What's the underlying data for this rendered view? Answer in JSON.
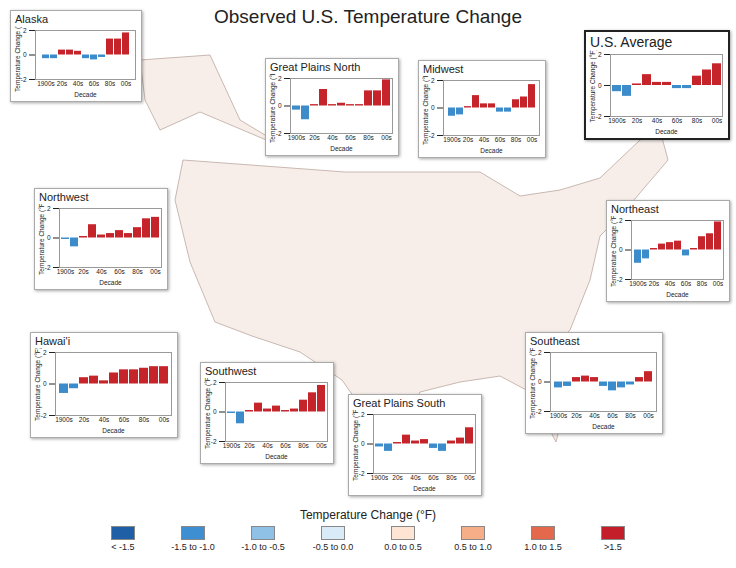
{
  "title": "Observed U.S. Temperature Change",
  "chart_data": [
    {
      "type": "bar",
      "title": "Alaska",
      "categories": [
        "1900s",
        null,
        "20s",
        null,
        "40s",
        null,
        "60s",
        null,
        "80s",
        null,
        "00s"
      ],
      "values": [
        -0.3,
        -0.3,
        0.4,
        0.4,
        0.3,
        -0.3,
        -0.4,
        -0.2,
        1.3,
        1.3,
        1.8
      ],
      "colors": [
        "#3c8ccb",
        "#3c8ccb",
        "#c5242b",
        "#c5242b",
        "#c5242b",
        "#3c8ccb",
        "#3c8ccb",
        "#3c8ccb",
        "#c5242b",
        "#c5242b",
        "#c5242b"
      ],
      "xlabel": "Decade",
      "ylabel": "Temperature Change (°F)",
      "ylim": [
        -2,
        2
      ],
      "yticks": [
        -2,
        0,
        2
      ]
    },
    {
      "type": "bar",
      "title": "Great Plains North",
      "categories": [
        "1900s",
        null,
        "20s",
        null,
        "40s",
        null,
        "60s",
        null,
        "80s",
        null,
        "00s"
      ],
      "values": [
        -0.3,
        -1.0,
        0.1,
        1.2,
        0.1,
        0.2,
        0.1,
        0.1,
        1.1,
        1.1,
        1.9
      ],
      "colors": [
        "#3c8ccb",
        "#3c8ccb",
        "#c5242b",
        "#c5242b",
        "#c5242b",
        "#c5242b",
        "#c5242b",
        "#c5242b",
        "#c5242b",
        "#c5242b",
        "#c5242b"
      ],
      "xlabel": "Decade",
      "ylabel": "Temperature Change (°F)",
      "ylim": [
        -2,
        2
      ],
      "yticks": [
        -2,
        0,
        2
      ]
    },
    {
      "type": "bar",
      "title": "Midwest",
      "categories": [
        "1900s",
        null,
        "20s",
        null,
        "40s",
        null,
        "60s",
        null,
        "80s",
        null,
        "00s"
      ],
      "values": [
        -0.6,
        -0.5,
        0.1,
        0.9,
        0.3,
        0.3,
        -0.3,
        -0.3,
        0.6,
        0.8,
        1.7
      ],
      "colors": [
        "#3c8ccb",
        "#3c8ccb",
        "#c5242b",
        "#c5242b",
        "#c5242b",
        "#c5242b",
        "#3c8ccb",
        "#3c8ccb",
        "#c5242b",
        "#c5242b",
        "#c5242b"
      ],
      "xlabel": "Decade",
      "ylabel": "Temperature Change (°F)",
      "ylim": [
        -2,
        2
      ],
      "yticks": [
        -2,
        0,
        2
      ]
    },
    {
      "type": "bar",
      "title": "U.S. Average",
      "categories": [
        "1900s",
        null,
        "20s",
        null,
        "40s",
        null,
        "60s",
        null,
        "80s",
        null,
        "00s"
      ],
      "values": [
        -0.4,
        -0.7,
        0.1,
        0.7,
        0.2,
        0.2,
        -0.2,
        -0.2,
        0.6,
        1.0,
        1.4
      ],
      "colors": [
        "#3c8ccb",
        "#3c8ccb",
        "#c5242b",
        "#c5242b",
        "#c5242b",
        "#c5242b",
        "#3c8ccb",
        "#3c8ccb",
        "#c5242b",
        "#c5242b",
        "#c5242b"
      ],
      "xlabel": "Decade",
      "ylabel": "Temperature Change (°F)",
      "ylim": [
        -2,
        2
      ],
      "yticks": [
        -2,
        0,
        2
      ]
    },
    {
      "type": "bar",
      "title": "Northwest",
      "categories": [
        "1900s",
        null,
        "20s",
        null,
        "40s",
        null,
        "60s",
        null,
        "80s",
        null,
        "00s"
      ],
      "values": [
        -0.1,
        -0.6,
        0.1,
        0.9,
        0.2,
        0.3,
        0.5,
        0.3,
        0.7,
        1.3,
        1.4
      ],
      "colors": [
        "#3c8ccb",
        "#3c8ccb",
        "#c5242b",
        "#c5242b",
        "#c5242b",
        "#c5242b",
        "#c5242b",
        "#c5242b",
        "#c5242b",
        "#c5242b",
        "#c5242b"
      ],
      "xlabel": "Decade",
      "ylabel": "Temperature Change (°F)",
      "ylim": [
        -2,
        2
      ],
      "yticks": [
        -2,
        0,
        2
      ]
    },
    {
      "type": "bar",
      "title": "Northeast",
      "categories": [
        "1900s",
        null,
        "20s",
        null,
        "40s",
        null,
        "60s",
        null,
        "80s",
        null,
        "00s"
      ],
      "values": [
        -0.9,
        -0.6,
        0.1,
        0.4,
        0.5,
        0.6,
        -0.4,
        0.1,
        0.9,
        1.1,
        1.9
      ],
      "colors": [
        "#3c8ccb",
        "#3c8ccb",
        "#c5242b",
        "#c5242b",
        "#c5242b",
        "#c5242b",
        "#3c8ccb",
        "#c5242b",
        "#c5242b",
        "#c5242b",
        "#c5242b"
      ],
      "xlabel": "Decade",
      "ylabel": "Temperature Change (°F)",
      "ylim": [
        -2,
        2
      ],
      "yticks": [
        -2,
        0,
        2
      ]
    },
    {
      "type": "bar",
      "title": "Hawai'i",
      "categories": [
        "1900s",
        null,
        "20s",
        null,
        "40s",
        null,
        "60s",
        null,
        "80s",
        null,
        "00s"
      ],
      "values": [
        -0.6,
        -0.3,
        0.4,
        0.5,
        0.2,
        0.7,
        0.9,
        0.9,
        1.0,
        1.1,
        1.1
      ],
      "colors": [
        "#3c8ccb",
        "#3c8ccb",
        "#c5242b",
        "#c5242b",
        "#c5242b",
        "#c5242b",
        "#c5242b",
        "#c5242b",
        "#c5242b",
        "#c5242b",
        "#c5242b"
      ],
      "xlabel": "Decade",
      "ylabel": "Temperature Change (°F)",
      "ylim": [
        -2,
        2
      ],
      "yticks": [
        -2,
        0,
        2
      ]
    },
    {
      "type": "bar",
      "title": "Southwest",
      "categories": [
        "1900s",
        null,
        "20s",
        null,
        "40s",
        null,
        "60s",
        null,
        "80s",
        null,
        "00s"
      ],
      "values": [
        -0.1,
        -0.8,
        0.1,
        0.6,
        0.2,
        0.4,
        0.1,
        0.2,
        0.8,
        1.3,
        1.8
      ],
      "colors": [
        "#3c8ccb",
        "#3c8ccb",
        "#c5242b",
        "#c5242b",
        "#c5242b",
        "#c5242b",
        "#c5242b",
        "#c5242b",
        "#c5242b",
        "#c5242b",
        "#c5242b"
      ],
      "xlabel": "Decade",
      "ylabel": "Temperature Change (°F)",
      "ylim": [
        -2,
        2
      ],
      "yticks": [
        -2,
        0,
        2
      ]
    },
    {
      "type": "bar",
      "title": "Great Plains South",
      "categories": [
        "1900s",
        null,
        "20s",
        null,
        "40s",
        null,
        "60s",
        null,
        "80s",
        null,
        "00s"
      ],
      "values": [
        -0.2,
        -0.5,
        0.1,
        0.6,
        0.2,
        0.3,
        -0.3,
        -0.5,
        0.2,
        0.4,
        1.1
      ],
      "colors": [
        "#3c8ccb",
        "#3c8ccb",
        "#c5242b",
        "#c5242b",
        "#c5242b",
        "#c5242b",
        "#3c8ccb",
        "#3c8ccb",
        "#c5242b",
        "#c5242b",
        "#c5242b"
      ],
      "xlabel": "Decade",
      "ylabel": "Temperature Change (°F)",
      "ylim": [
        -2,
        2
      ],
      "yticks": [
        -2,
        0,
        2
      ]
    },
    {
      "type": "bar",
      "title": "Southeast",
      "categories": [
        "1900s",
        null,
        "20s",
        null,
        "40s",
        null,
        "60s",
        null,
        "80s",
        null,
        "00s"
      ],
      "values": [
        -0.4,
        -0.3,
        0.3,
        0.4,
        0.3,
        -0.3,
        -0.6,
        -0.4,
        -0.2,
        0.3,
        0.7
      ],
      "colors": [
        "#3c8ccb",
        "#3c8ccb",
        "#c5242b",
        "#c5242b",
        "#c5242b",
        "#3c8ccb",
        "#3c8ccb",
        "#3c8ccb",
        "#3c8ccb",
        "#c5242b",
        "#c5242b"
      ],
      "xlabel": "Decade",
      "ylabel": "Temperature Change (°F)",
      "ylim": [
        -2,
        2
      ],
      "yticks": [
        -2,
        0,
        2
      ]
    }
  ],
  "map_legend": {
    "title": "Temperature Change (°F)",
    "bins": [
      {
        "label": "< -1.5",
        "color": "#1f5fa6"
      },
      {
        "label": "-1.5 to -1.0",
        "color": "#3d8fd1"
      },
      {
        "label": "-1.0 to -0.5",
        "color": "#8fc1e6"
      },
      {
        "label": "-0.5 to 0.0",
        "color": "#d9ebf6"
      },
      {
        "label": "0.0 to 0.5",
        "color": "#fde4d3"
      },
      {
        "label": "0.5 to 1.0",
        "color": "#f6ae88"
      },
      {
        "label": "1.0 to 1.5",
        "color": "#e4684c"
      },
      {
        "label": ">1.5",
        "color": "#c41e2a"
      }
    ]
  }
}
